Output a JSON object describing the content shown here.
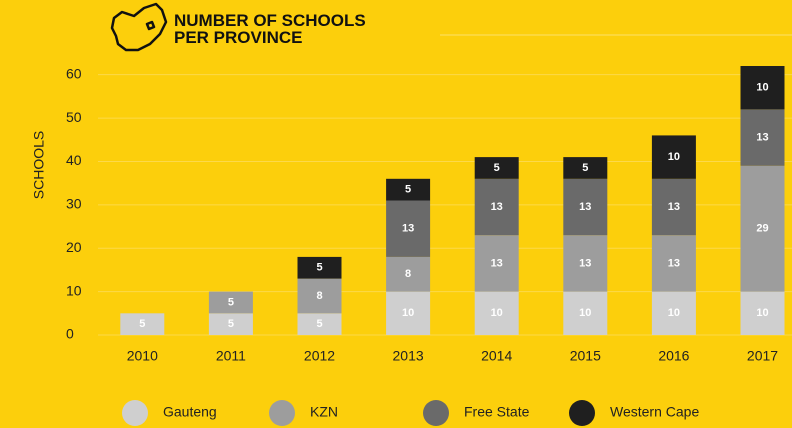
{
  "chart_data": {
    "type": "stacked_bar",
    "title": "NUMBER OF SCHOOLS PER PROVINCE",
    "y_label": "SCHOOLS",
    "categories": [
      "2010",
      "2011",
      "2012",
      "2013",
      "2014",
      "2015",
      "2016",
      "2017"
    ],
    "series": [
      {
        "name": "Gauteng",
        "color": "#cfcfcf",
        "values": [
          5,
          5,
          5,
          10,
          10,
          10,
          10,
          10
        ]
      },
      {
        "name": "KZN",
        "color": "#9d9d9d",
        "values": [
          null,
          5,
          8,
          8,
          13,
          13,
          13,
          29
        ]
      },
      {
        "name": "Free State",
        "color": "#6a6a6a",
        "values": [
          null,
          null,
          null,
          13,
          13,
          13,
          13,
          13
        ]
      },
      {
        "name": "Western Cape",
        "color": "#1f1f1f",
        "values": [
          null,
          null,
          5,
          5,
          5,
          5,
          10,
          10
        ]
      }
    ],
    "ylim": [
      0,
      62
    ],
    "yticks": [
      0,
      10,
      20,
      30,
      40,
      50,
      60
    ],
    "grid": true
  }
}
